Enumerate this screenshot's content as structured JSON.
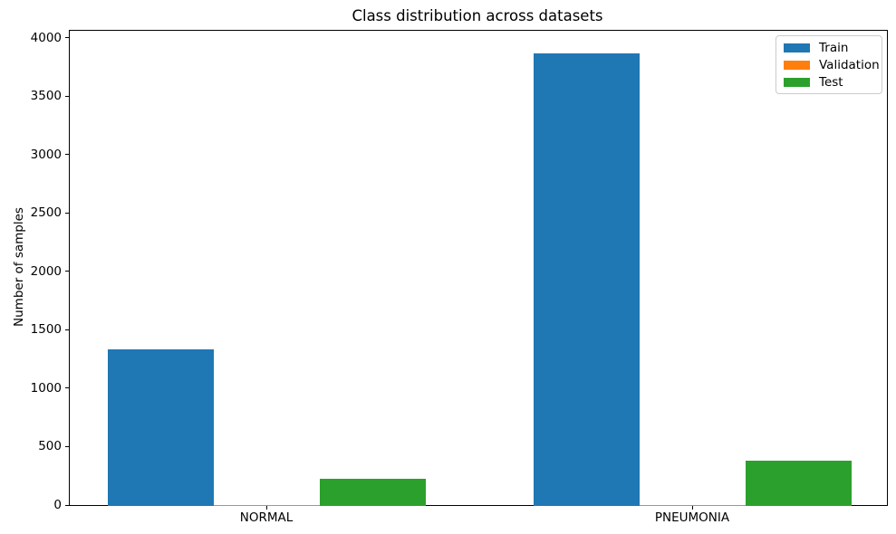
{
  "chart_data": {
    "type": "bar",
    "title": "Class distribution across datasets",
    "xlabel": "",
    "ylabel": "Number of samples",
    "categories": [
      "NORMAL",
      "PNEUMONIA"
    ],
    "series": [
      {
        "name": "Train",
        "color": "#1f77b4",
        "values": [
          1341,
          3875
        ]
      },
      {
        "name": "Validation",
        "color": "#ff7f0e",
        "values": [
          8,
          8
        ]
      },
      {
        "name": "Test",
        "color": "#2ca02c",
        "values": [
          234,
          390
        ]
      }
    ],
    "yticks": [
      0,
      500,
      1000,
      1500,
      2000,
      2500,
      3000,
      3500,
      4000
    ],
    "ylim": [
      0,
      4062
    ],
    "grid": false,
    "legend_position": "upper right",
    "legend_entries": [
      "Train",
      "Validation",
      "Test"
    ]
  }
}
